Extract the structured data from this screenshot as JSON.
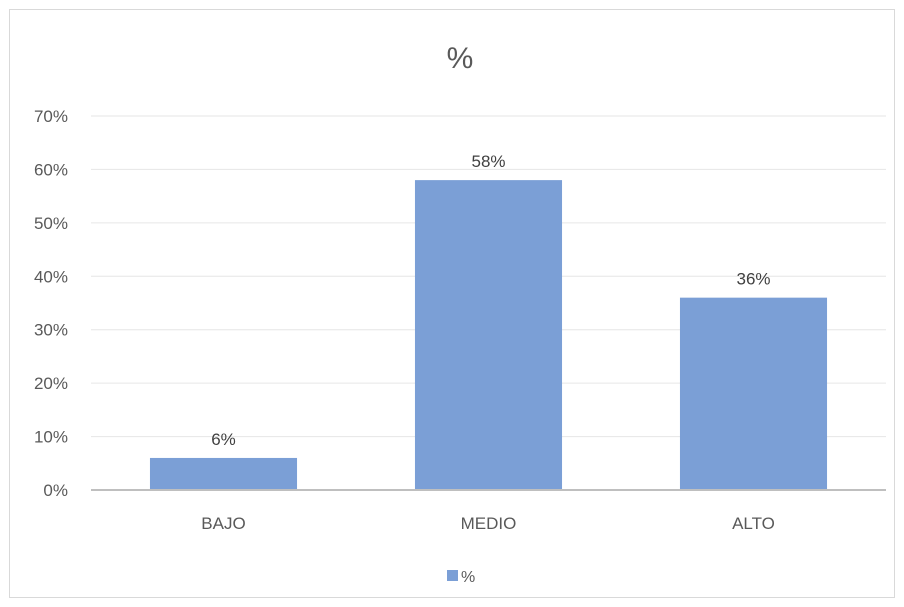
{
  "chart_data": {
    "type": "bar",
    "title": "%",
    "categories": [
      "BAJO",
      "MEDIO",
      "ALTO"
    ],
    "series": [
      {
        "name": "%",
        "values": [
          0.06,
          0.58,
          0.36
        ],
        "data_labels": [
          "6%",
          "58%",
          "36%"
        ],
        "color": "#7b9fd6"
      }
    ],
    "ylim": [
      0,
      0.7
    ],
    "y_ticks": [
      0,
      0.1,
      0.2,
      0.3,
      0.4,
      0.5,
      0.6,
      0.7
    ],
    "y_tick_labels": [
      "0%",
      "10%",
      "20%",
      "30%",
      "40%",
      "50%",
      "60%",
      "70%"
    ],
    "grid": true,
    "legend": "bottom",
    "colors": {
      "grid": "#e6e6e6",
      "axis": "#bfbfbf",
      "frame": "#d9d9d9"
    }
  }
}
